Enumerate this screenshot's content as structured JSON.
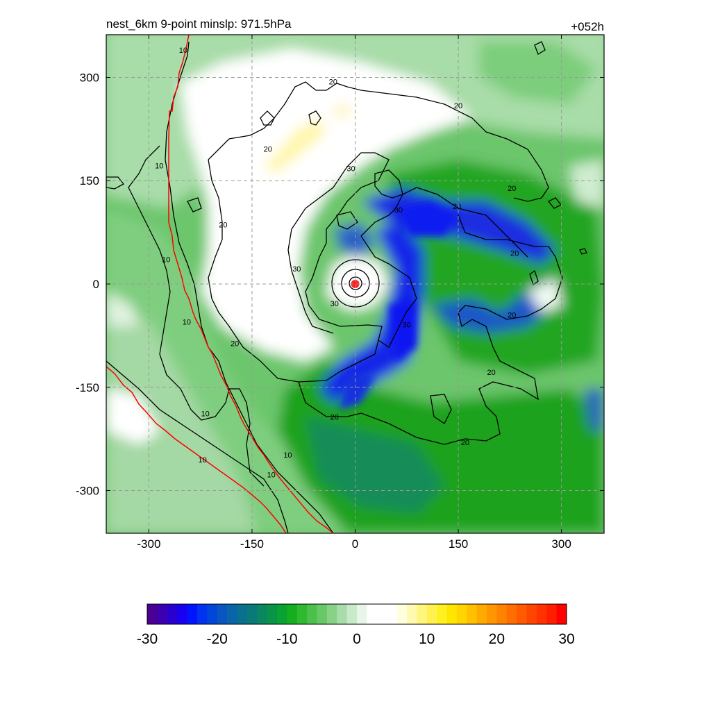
{
  "title": {
    "left": "nest_6km  9-point minslp: 971.5hPa",
    "right": "+052h"
  },
  "chart_data": {
    "type": "heatmap",
    "description_of_fields": "shaded field with contour overlay",
    "xlim": [
      -362,
      362
    ],
    "ylim": [
      -362,
      362
    ],
    "xticks": [
      -300,
      -150,
      0,
      150,
      300
    ],
    "yticks": [
      300,
      150,
      0,
      -150,
      -300
    ],
    "xtick_labels": [
      "-300",
      "-150",
      "0",
      "150",
      "300"
    ],
    "ytick_labels": [
      "300",
      "150",
      "0",
      "-150",
      "-300"
    ],
    "grid": true,
    "grid_style": "dashed",
    "center_marker": {
      "x": 0,
      "y": 0,
      "color": "#ff2020"
    },
    "contour_levels": [
      10,
      20,
      30
    ],
    "contour_labels": [
      {
        "text": "10",
        "x": -250,
        "y": 340
      },
      {
        "text": "10",
        "x": -285,
        "y": 172
      },
      {
        "text": "10",
        "x": -275,
        "y": 36
      },
      {
        "text": "10",
        "x": -245,
        "y": -55
      },
      {
        "text": "10",
        "x": -218,
        "y": -188
      },
      {
        "text": "10",
        "x": -222,
        "y": -255
      },
      {
        "text": "10",
        "x": -98,
        "y": -248
      },
      {
        "text": "10",
        "x": -122,
        "y": -277
      },
      {
        "text": "20",
        "x": -32,
        "y": 294
      },
      {
        "text": "20",
        "x": 150,
        "y": 259
      },
      {
        "text": "20",
        "x": -127,
        "y": 196
      },
      {
        "text": "20",
        "x": -192,
        "y": 86
      },
      {
        "text": "20",
        "x": -175,
        "y": -86
      },
      {
        "text": "20",
        "x": 228,
        "y": 139
      },
      {
        "text": "20",
        "x": 148,
        "y": 113
      },
      {
        "text": "20",
        "x": 232,
        "y": 45
      },
      {
        "text": "20",
        "x": 228,
        "y": -45
      },
      {
        "text": "20",
        "x": 198,
        "y": -128
      },
      {
        "text": "20",
        "x": -30,
        "y": -193
      },
      {
        "text": "20",
        "x": 160,
        "y": -230
      },
      {
        "text": "30",
        "x": -6,
        "y": 168
      },
      {
        "text": "30",
        "x": 63,
        "y": 108
      },
      {
        "text": "30",
        "x": -85,
        "y": 22
      },
      {
        "text": "30",
        "x": -30,
        "y": -28
      },
      {
        "text": "30",
        "x": 75,
        "y": -59
      }
    ],
    "colorbar": {
      "min": -30,
      "max": 30,
      "ticks": [
        -30,
        -20,
        -10,
        0,
        10,
        20,
        30
      ],
      "tick_labels": [
        "-30",
        "-20",
        "-10",
        "0",
        "10",
        "20",
        "30"
      ],
      "colors": [
        "#4b0094",
        "#3c00b0",
        "#2a00d0",
        "#1a00f0",
        "#0014ff",
        "#0032f0",
        "#0046d8",
        "#0a56c0",
        "#0a64a8",
        "#0a7090",
        "#0a7a78",
        "#0a8660",
        "#0a9448",
        "#0aa230",
        "#14ae1e",
        "#30b830",
        "#4cc04c",
        "#68c868",
        "#88d288",
        "#a8dca8",
        "#c8eac8",
        "#e8f6e8",
        "#ffffff",
        "#ffffff",
        "#ffffff",
        "#ffffe0",
        "#fffab0",
        "#fff680",
        "#fff250",
        "#fff020",
        "#ffe600",
        "#ffd400",
        "#ffc000",
        "#ffaa00",
        "#ff9600",
        "#ff8200",
        "#ff6e00",
        "#ff5a00",
        "#ff4600",
        "#ff3200",
        "#ff1e00",
        "#ff0000"
      ]
    }
  }
}
